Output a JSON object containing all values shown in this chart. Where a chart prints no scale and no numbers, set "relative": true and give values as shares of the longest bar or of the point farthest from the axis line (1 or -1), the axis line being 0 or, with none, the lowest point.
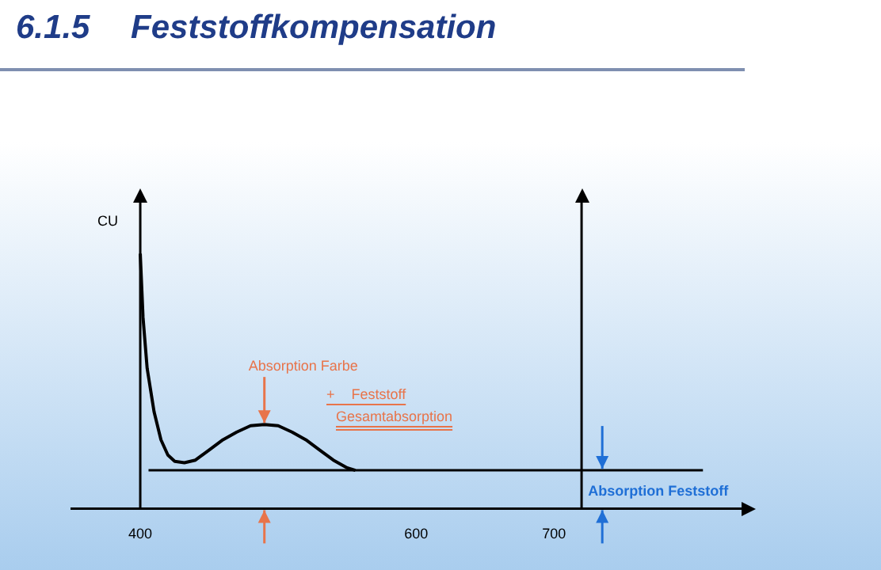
{
  "chart_data": {
    "type": "line",
    "title": "6.1.5 Feststoffkompensation",
    "ylabel": "CU",
    "relative": true,
    "xlim": [
      350,
      836
    ],
    "xticks": [
      400,
      600,
      700
    ],
    "series": [
      {
        "color": "#000000",
        "x": [
          400,
          402,
          405,
          410,
          415,
          420,
          425,
          432,
          440,
          450,
          460,
          470,
          480,
          490,
          500,
          510,
          520,
          530,
          540,
          550,
          556
        ],
        "values": [
          1.0,
          0.75,
          0.55,
          0.38,
          0.27,
          0.21,
          0.185,
          0.18,
          0.19,
          0.23,
          0.27,
          0.3,
          0.325,
          0.33,
          0.325,
          0.3,
          0.27,
          0.23,
          0.19,
          0.16,
          0.15
        ]
      },
      {
        "color": "#000000",
        "x": [
          406,
          808
        ],
        "values": [
          0.15,
          0.15
        ]
      }
    ],
    "ref_lines": [
      {
        "axis": "x",
        "value": 400,
        "color": "#000000"
      },
      {
        "axis": "x",
        "value": 720,
        "color": "#000000"
      }
    ],
    "annotations": [
      {
        "text": "Absorption Farbe",
        "x": 490,
        "y": 0.33
      },
      "+ Feststoff",
      "Gesamtabsorption",
      {
        "text": "Absorption Feststoff",
        "x": 735,
        "y": 0.15
      }
    ]
  }
}
